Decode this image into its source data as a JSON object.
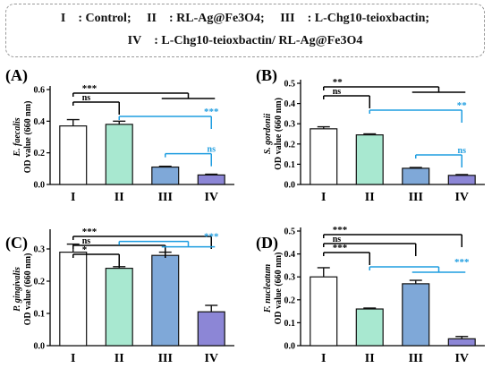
{
  "legend": {
    "line1": "I : Control;  II : RL-Ag@Fe3O4;  III : L-Chg10-teioxbactin;",
    "line2": "IV : L-Chg10-teioxbactin/ RL-Ag@Fe3O4"
  },
  "colors": {
    "I": "#ffffff",
    "II": "#a8e8d0",
    "III": "#7fa8d8",
    "IV": "#8c86d6",
    "black_bracket": "#000000",
    "blue_bracket": "#1e9de0"
  },
  "chart_data": [
    {
      "panel_label": "(A)",
      "type": "bar",
      "categories": [
        "I",
        "II",
        "III",
        "IV"
      ],
      "values": [
        0.37,
        0.38,
        0.11,
        0.06
      ],
      "errors": [
        0.04,
        0.02,
        0.005,
        0.005
      ],
      "ylabel_species": "E. faecalis",
      "ylabel": "OD value (660 nm)",
      "ylim": [
        0,
        0.6
      ],
      "yticks": [
        "0.0",
        "0.2",
        "0.4",
        "0.6"
      ],
      "significance": [
        {
          "label": "***",
          "color": "black",
          "from": "I",
          "to": [
            "III",
            "IV"
          ]
        },
        {
          "label": "ns",
          "color": "black",
          "from": "I",
          "to": [
            "II"
          ]
        },
        {
          "label": "***",
          "color": "blue",
          "from": "II",
          "to": [
            "IV"
          ]
        },
        {
          "label": "ns",
          "color": "blue",
          "from": "III",
          "to": [
            "IV"
          ]
        }
      ]
    },
    {
      "panel_label": "(B)",
      "type": "bar",
      "categories": [
        "I",
        "II",
        "III",
        "IV"
      ],
      "values": [
        0.275,
        0.245,
        0.08,
        0.045
      ],
      "errors": [
        0.01,
        0.005,
        0.004,
        0.004
      ],
      "ylabel_species": "S. gordonii",
      "ylabel": "OD value (660 nm)",
      "ylim": [
        0,
        0.5
      ],
      "yticks": [
        "0.0",
        "0.1",
        "0.2",
        "0.3",
        "0.4",
        "0.5"
      ],
      "significance": [
        {
          "label": "**",
          "color": "black",
          "from": "I",
          "to": [
            "III",
            "IV"
          ]
        },
        {
          "label": "ns",
          "color": "black",
          "from": "I",
          "to": [
            "II"
          ]
        },
        {
          "label": "**",
          "color": "blue",
          "from": "II",
          "to": [
            "IV"
          ]
        },
        {
          "label": "ns",
          "color": "blue",
          "from": "III",
          "to": [
            "IV"
          ]
        }
      ]
    },
    {
      "panel_label": "(C)",
      "type": "bar",
      "categories": [
        "I",
        "II",
        "III",
        "IV"
      ],
      "values": [
        0.29,
        0.24,
        0.28,
        0.105
      ],
      "errors": [
        0.025,
        0.005,
        0.01,
        0.02
      ],
      "ylabel_species": "P. gingivalis",
      "ylabel": "OD value (660 nm)",
      "ylim": [
        0,
        0.35
      ],
      "yticks": [
        "0.0",
        "0.1",
        "0.2",
        "0.3"
      ],
      "significance": [
        {
          "label": "***",
          "color": "black",
          "from": "I",
          "to": [
            "IV"
          ]
        },
        {
          "label": "ns",
          "color": "black",
          "from": "I",
          "to": [
            "III"
          ]
        },
        {
          "label": "*",
          "color": "black",
          "from": "I",
          "to": [
            "II"
          ]
        },
        {
          "label": "***",
          "color": "blue",
          "from": "II",
          "to": [
            "III",
            "IV"
          ]
        }
      ]
    },
    {
      "panel_label": "(D)",
      "type": "bar",
      "categories": [
        "I",
        "II",
        "III",
        "IV"
      ],
      "values": [
        0.3,
        0.16,
        0.27,
        0.03
      ],
      "errors": [
        0.04,
        0.004,
        0.015,
        0.01
      ],
      "ylabel_species": "F. nucleatum",
      "ylabel": "OD value (660 nm)",
      "ylim": [
        0,
        0.5
      ],
      "yticks": [
        "0.0",
        "0.1",
        "0.2",
        "0.3",
        "0.4",
        "0.5"
      ],
      "significance": [
        {
          "label": "***",
          "color": "black",
          "from": "I",
          "to": [
            "IV"
          ]
        },
        {
          "label": "ns",
          "color": "black",
          "from": "I",
          "to": [
            "III"
          ]
        },
        {
          "label": "***",
          "color": "black",
          "from": "I",
          "to": [
            "II"
          ]
        },
        {
          "label": "***",
          "color": "blue",
          "from": "II",
          "to": [
            "III",
            "IV"
          ]
        }
      ]
    }
  ]
}
